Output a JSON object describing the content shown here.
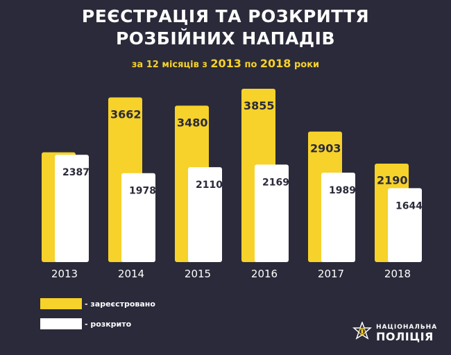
{
  "header": {
    "title_line1": "РЕЄСТРАЦІЯ ТА РОЗКРИТТЯ",
    "title_line2": "РОЗБІЙНИХ НАПАДІВ",
    "subtitle_a": "за ",
    "subtitle_b": "12 місяців",
    "subtitle_c": " з ",
    "subtitle_d": "2013",
    "subtitle_e": " по ",
    "subtitle_f": "2018",
    "subtitle_g": " роки"
  },
  "chart_data": {
    "type": "bar",
    "categories": [
      "2013",
      "2014",
      "2015",
      "2016",
      "2017",
      "2018"
    ],
    "series": [
      {
        "name": "- зареєстровано",
        "values": [
          2442,
          3662,
          3480,
          3855,
          2903,
          2190
        ],
        "color": "#f6d22a"
      },
      {
        "name": "- розкрито",
        "values": [
          2387,
          1978,
          2110,
          2169,
          1989,
          1644
        ],
        "color": "#ffffff"
      }
    ],
    "ylim": [
      0,
      3855
    ],
    "grid": false,
    "legend_position": "bottom-left"
  },
  "legend": {
    "registered_label": "- зареєстровано",
    "solved_label": "- розкрито"
  },
  "logo": {
    "line1": "НАЦІОНАЛЬНА",
    "line2": "ПОЛІЦІЯ",
    "icon": "police-star-icon"
  },
  "colors": {
    "background": "#2a2a3a",
    "accent": "#f6d22a",
    "bar_white": "#ffffff",
    "label_dark": "#2a2a3a"
  }
}
